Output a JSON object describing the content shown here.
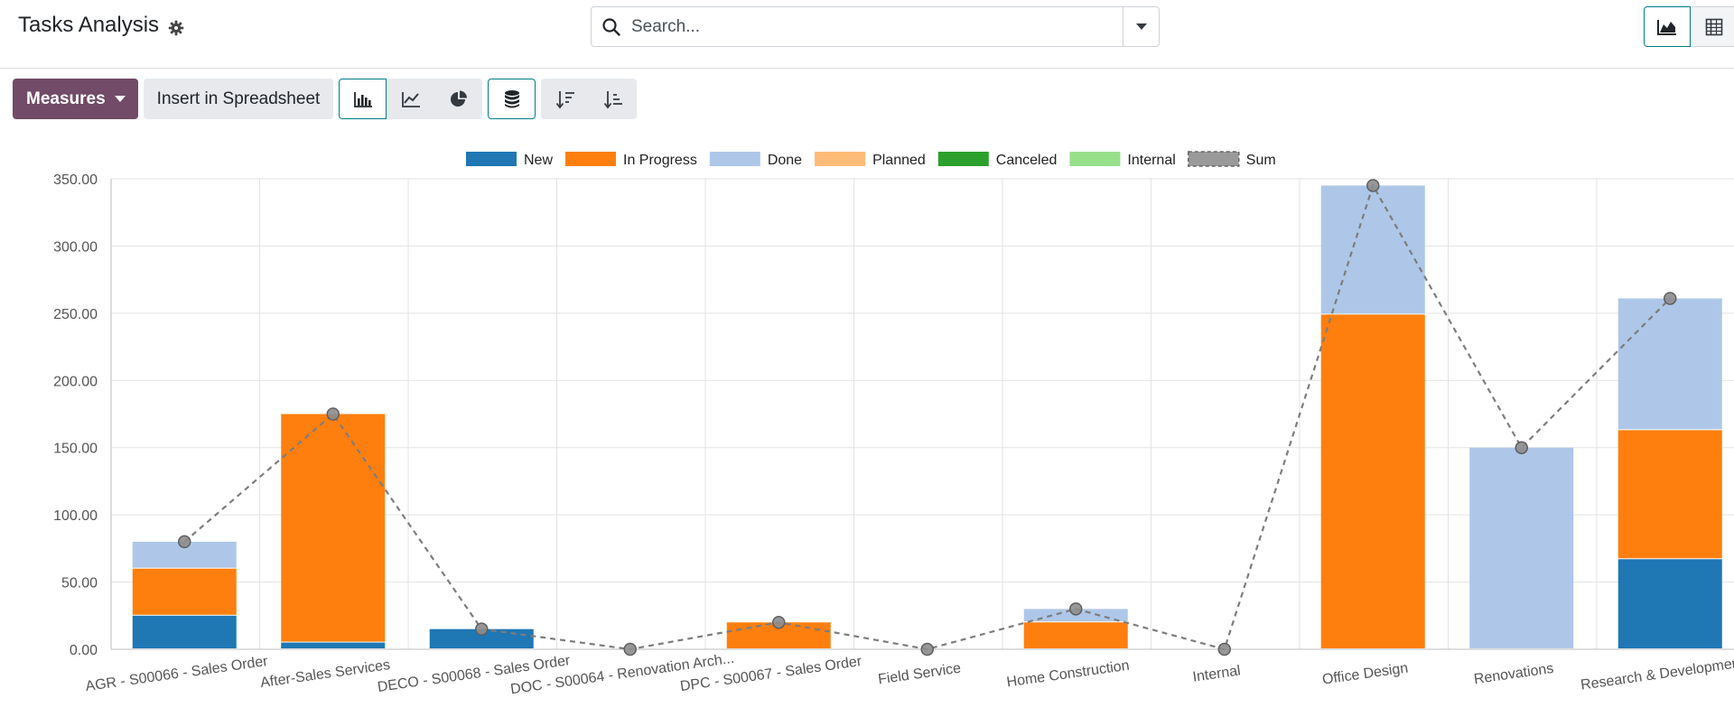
{
  "header": {
    "title": "Tasks Analysis",
    "settings_icon": "gear-icon"
  },
  "search": {
    "placeholder": "Search...",
    "value": ""
  },
  "view_switcher": {
    "graph_icon": "area-chart-icon",
    "pivot_icon": "table-grid-icon",
    "active": "graph"
  },
  "toolbar": {
    "measures_label": "Measures",
    "insert_label": "Insert in Spreadsheet",
    "chart_type_buttons": [
      "bar-chart-icon",
      "line-chart-icon",
      "pie-chart-icon"
    ],
    "active_chart_type": "bar",
    "stacked_icon": "database-stack-icon",
    "stacked_active": true,
    "sort_descending_icon": "sort-descending-icon",
    "sort_ascending_icon": "sort-ascending-icon"
  },
  "colors": {
    "accent": "#017e84",
    "brand": "#714b67"
  },
  "chart_data": {
    "type": "bar",
    "stacked": true,
    "categories": [
      "AGR - S00066 - Sales Order",
      "After-Sales Services",
      "DECO - S00068 - Sales Order",
      "DOC - S00064 - Renovation Arch...",
      "DPC - S00067 - Sales Order",
      "Field Service",
      "Home Construction",
      "Internal",
      "Office Design",
      "Renovations",
      "Research & Development"
    ],
    "series": [
      {
        "name": "New",
        "color": "#1f77b4",
        "values": [
          25,
          5,
          15,
          0,
          0,
          0,
          0,
          0,
          0,
          0,
          67
        ]
      },
      {
        "name": "In Progress",
        "color": "#ff7f0e",
        "values": [
          35,
          170,
          0,
          0,
          20,
          0,
          20,
          0,
          249,
          0,
          96
        ]
      },
      {
        "name": "Done",
        "color": "#aec7e8",
        "values": [
          20,
          0,
          0,
          0,
          0,
          0,
          10,
          0,
          96,
          150,
          98
        ]
      },
      {
        "name": "Planned",
        "color": "#ffbb78",
        "values": [
          0,
          0,
          0,
          0,
          0,
          0,
          0,
          0,
          0,
          0,
          0
        ]
      },
      {
        "name": "Canceled",
        "color": "#2ca02c",
        "values": [
          0,
          0,
          0,
          0,
          0,
          0,
          0,
          0,
          0,
          0,
          0
        ]
      },
      {
        "name": "Internal",
        "color": "#98df8a",
        "values": [
          0,
          0,
          0,
          0,
          0,
          0,
          0,
          0,
          0,
          0,
          0
        ]
      }
    ],
    "sum_series": {
      "name": "Sum",
      "color": "#8a8a8a",
      "values": [
        80,
        175,
        15,
        0,
        20,
        0,
        30,
        0,
        345,
        150,
        261
      ]
    },
    "ylim": [
      0,
      350
    ],
    "yticks": [
      "0.00",
      "50.00",
      "100.00",
      "150.00",
      "200.00",
      "250.00",
      "300.00",
      "350.00"
    ],
    "grid": true,
    "legend_position": "top-center"
  }
}
